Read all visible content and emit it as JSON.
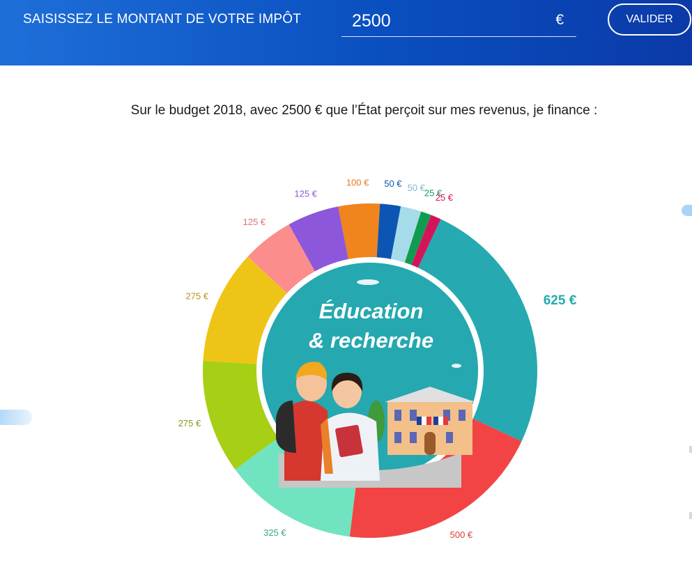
{
  "header": {
    "label": "SAISISSEZ LE MONTANT DE VOTRE IMPÔT",
    "amount_value": "2500",
    "currency": "€",
    "validate_label": "VALIDER"
  },
  "headline": "Sur le budget 2018, avec 2500 € que l’État perçoit sur mes revenus, je finance :",
  "center": {
    "line1": "Éducation",
    "line2": "& recherche",
    "illustration": "students-and-school-illustration"
  },
  "chart_data": {
    "type": "pie",
    "donut": true,
    "unit": "€",
    "total": 2500,
    "start_angle_deg": 25,
    "slices": [
      {
        "value": 625,
        "label": "625 €",
        "color": "#26a9b0",
        "text_color": "#26a9b0",
        "highlight": true
      },
      {
        "value": 500,
        "label": "500 €",
        "color": "#f24444",
        "text_color": "#e03a3a"
      },
      {
        "value": 325,
        "label": "325 €",
        "color": "#70e4c0",
        "text_color": "#3aa882"
      },
      {
        "value": 275,
        "label": "275 €",
        "color": "#a6cf16",
        "text_color": "#7f9b1a"
      },
      {
        "value": 275,
        "label": "275 €",
        "color": "#eec516",
        "text_color": "#b49410"
      },
      {
        "value": 125,
        "label": "125 €",
        "color": "#fb8d8d",
        "text_color": "#e07070"
      },
      {
        "value": 125,
        "label": "125 €",
        "color": "#8c57da",
        "text_color": "#8c57da"
      },
      {
        "value": 100,
        "label": "100 €",
        "color": "#f0841d",
        "text_color": "#e77a18"
      },
      {
        "value": 50,
        "label": "50 €",
        "color": "#0d55b2",
        "text_color": "#0d55b2"
      },
      {
        "value": 50,
        "label": "50 €",
        "color": "#a6dbea",
        "text_color": "#7fb8cc"
      },
      {
        "value": 25,
        "label": "25 €",
        "color": "#109c50",
        "text_color": "#109c50"
      },
      {
        "value": 25,
        "label": "25 €",
        "color": "#d4145a",
        "text_color": "#d4145a"
      }
    ]
  }
}
